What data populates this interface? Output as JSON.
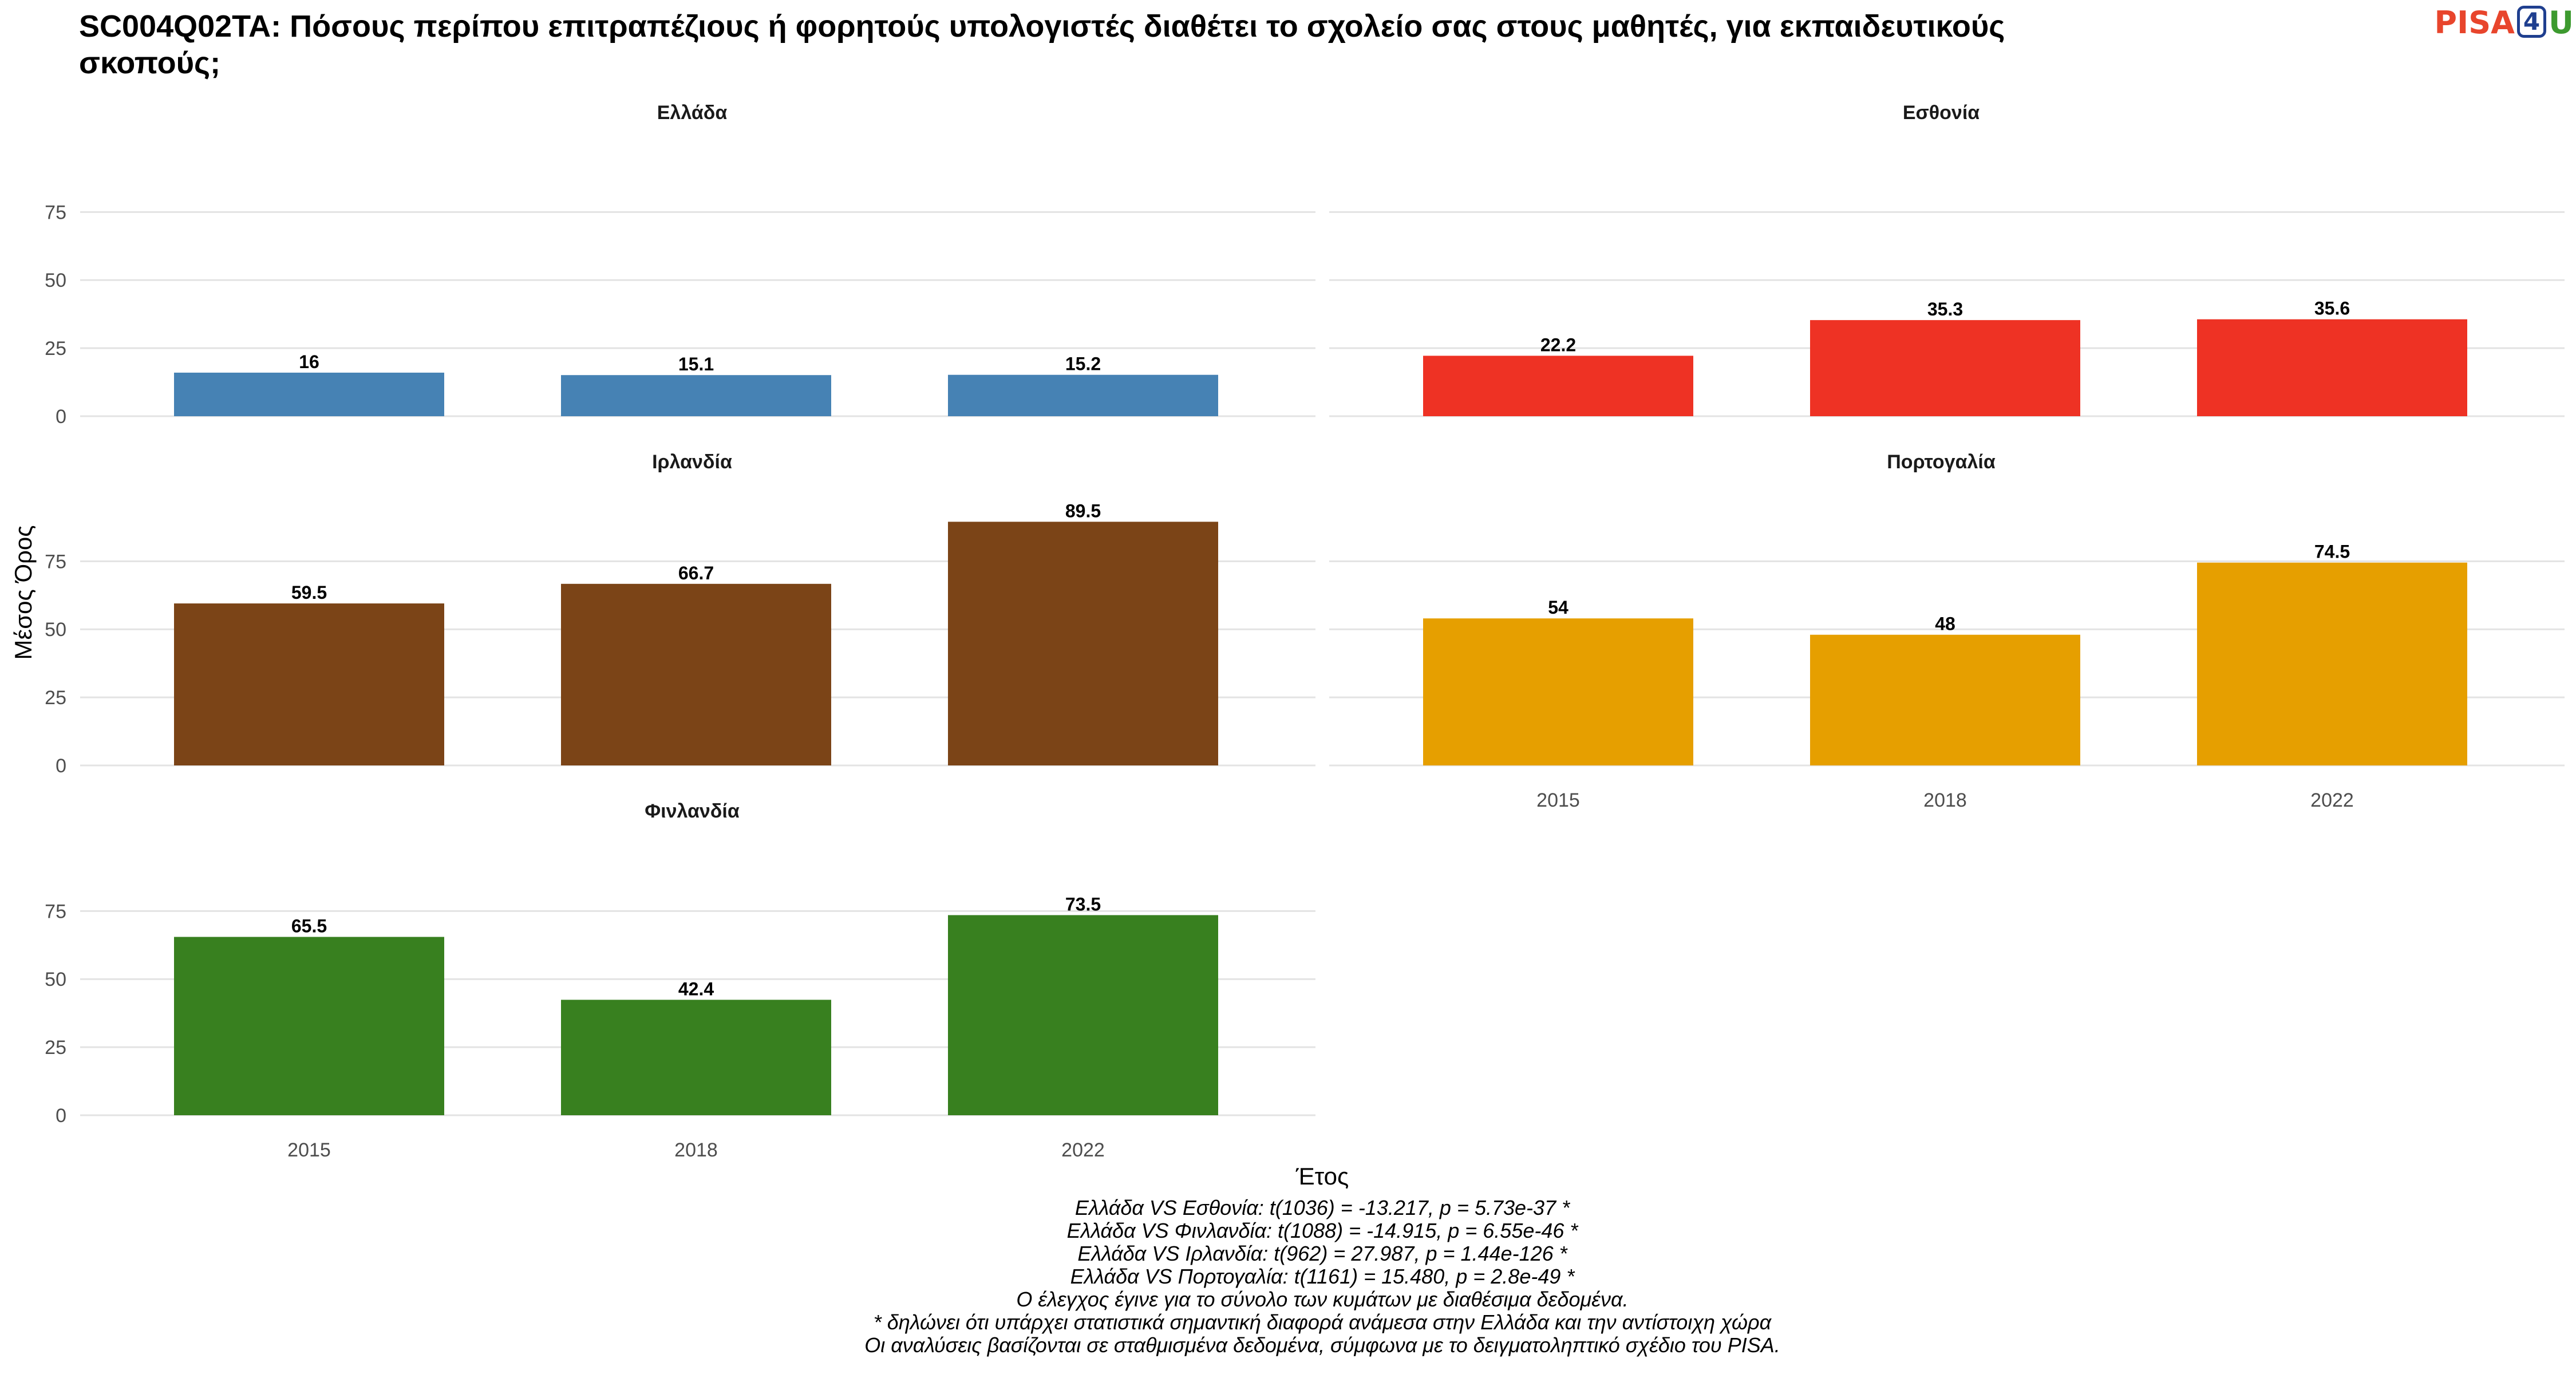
{
  "title": "SC004Q02TA: Πόσους περίπου επιτραπέζιους ή φορητούς υπολογιστές διαθέτει το σχολείο σας στους μαθητές, για εκπαιδευτικούς σκοπούς;",
  "logo": {
    "text_left": "PISA",
    "text_mid": "4",
    "text_right": "U"
  },
  "chart_data": {
    "type": "bar",
    "categories": [
      "2015",
      "2018",
      "2022"
    ],
    "xlabel": "Έτος",
    "ylabel": "Μέσος Όρος",
    "ylim": [
      0,
      90
    ],
    "yticks": [
      0,
      25,
      50,
      75
    ],
    "grid": true,
    "legend": "none",
    "panels": [
      {
        "name": "Ελλάδα",
        "color": "#4682b4",
        "values": [
          16,
          15.1,
          15.2
        ],
        "labels": [
          "16",
          "15.1",
          "15.2"
        ]
      },
      {
        "name": "Εσθονία",
        "color": "#ee3224",
        "values": [
          22.2,
          35.3,
          35.6
        ],
        "labels": [
          "22.2",
          "35.3",
          "35.6"
        ]
      },
      {
        "name": "Ιρλανδία",
        "color": "#7b4417",
        "values": [
          59.5,
          66.7,
          89.5
        ],
        "labels": [
          "59.5",
          "66.7",
          "89.5"
        ]
      },
      {
        "name": "Πορτογαλία",
        "color": "#e69f00",
        "values": [
          54,
          48,
          74.5
        ],
        "labels": [
          "54",
          "48",
          "74.5"
        ]
      },
      {
        "name": "Φινλανδία",
        "color": "#38801f",
        "values": [
          65.5,
          42.4,
          73.5
        ],
        "labels": [
          "65.5",
          "42.4",
          "73.5"
        ]
      }
    ]
  },
  "caption": [
    "Ελλάδα VS Εσθονία: t(1036) = -13.217, p = 5.73e-37 *",
    "Ελλάδα VS Φινλανδία: t(1088) = -14.915, p = 6.55e-46 *",
    "Ελλάδα VS Ιρλανδία: t(962) = 27.987, p = 1.44e-126 *",
    "Ελλάδα VS Πορτογαλία: t(1161) = 15.480, p = 2.8e-49 *",
    "Ο έλεγχος έγινε για το σύνολο των κυμάτων με διαθέσιμα δεδομένα.",
    "* δηλώνει ότι υπάρχει στατιστικά σημαντική διαφορά ανάμεσα στην Ελλάδα και την αντίστοιχη χώρα",
    "Οι αναλύσεις βασίζονται σε σταθμισμένα δεδομένα, σύμφωνα με το δειγματοληπτικό σχέδιο του PISA."
  ]
}
